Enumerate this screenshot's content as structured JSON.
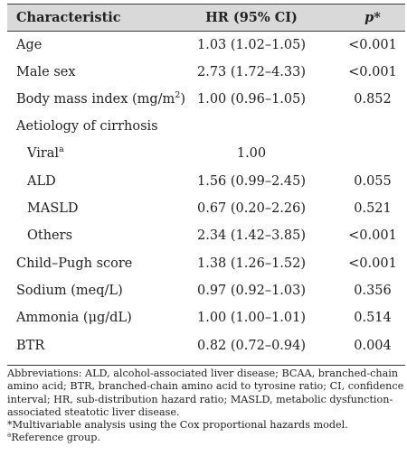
{
  "header": {
    "characteristic": "Characteristic",
    "hr": "HR (95% CI)",
    "p": "p*"
  },
  "rows": [
    {
      "label": "Age",
      "hr": "1.03 (1.02–1.05)",
      "p": "<0.001"
    },
    {
      "label": "Male sex",
      "hr": "2.73 (1.72–4.33)",
      "p": "<0.001"
    },
    {
      "label": "Body mass index (mg/m",
      "label_sup": "2",
      "label_after": ")",
      "hr": "1.00 (0.96–1.05)",
      "p": "0.852"
    },
    {
      "label": "Aetiology of cirrhosis",
      "hr": "",
      "p": ""
    },
    {
      "label": "Viral",
      "label_sup": "a",
      "hr": "1.00",
      "p": ""
    },
    {
      "label": "ALD",
      "hr": "1.56 (0.99–2.45)",
      "p": "0.055"
    },
    {
      "label": "MASLD",
      "hr": "0.67 (0.20–2.26)",
      "p": "0.521"
    },
    {
      "label": "Others",
      "hr": "2.34 (1.42–3.85)",
      "p": "<0.001"
    },
    {
      "label": "Child–Pugh score",
      "hr": "1.38 (1.26–1.52)",
      "p": "<0.001"
    },
    {
      "label": "Sodium (meq/L)",
      "hr": "0.97 (0.92–1.03)",
      "p": "0.356"
    },
    {
      "label": "Ammonia (μg/dL)",
      "hr": "1.00 (1.00–1.01)",
      "p": "0.514"
    },
    {
      "label": "BTR",
      "hr": "0.82 (0.72–0.94)",
      "p": "0.004"
    }
  ],
  "notes": {
    "abbreviations": "Abbreviations: ALD, alcohol-associated liver disease; BCAA, branched-chain amino acid; BTR, branched-chain amino acid to tyrosine ratio; CI, confidence interval; HR, sub-distribution hazard ratio; MASLD, metabolic dysfunction-associated steatotic liver disease.",
    "multivariable": "*Multivariable analysis using the Cox proportional hazards model.",
    "reference_sup": "a",
    "reference": "Reference group."
  }
}
